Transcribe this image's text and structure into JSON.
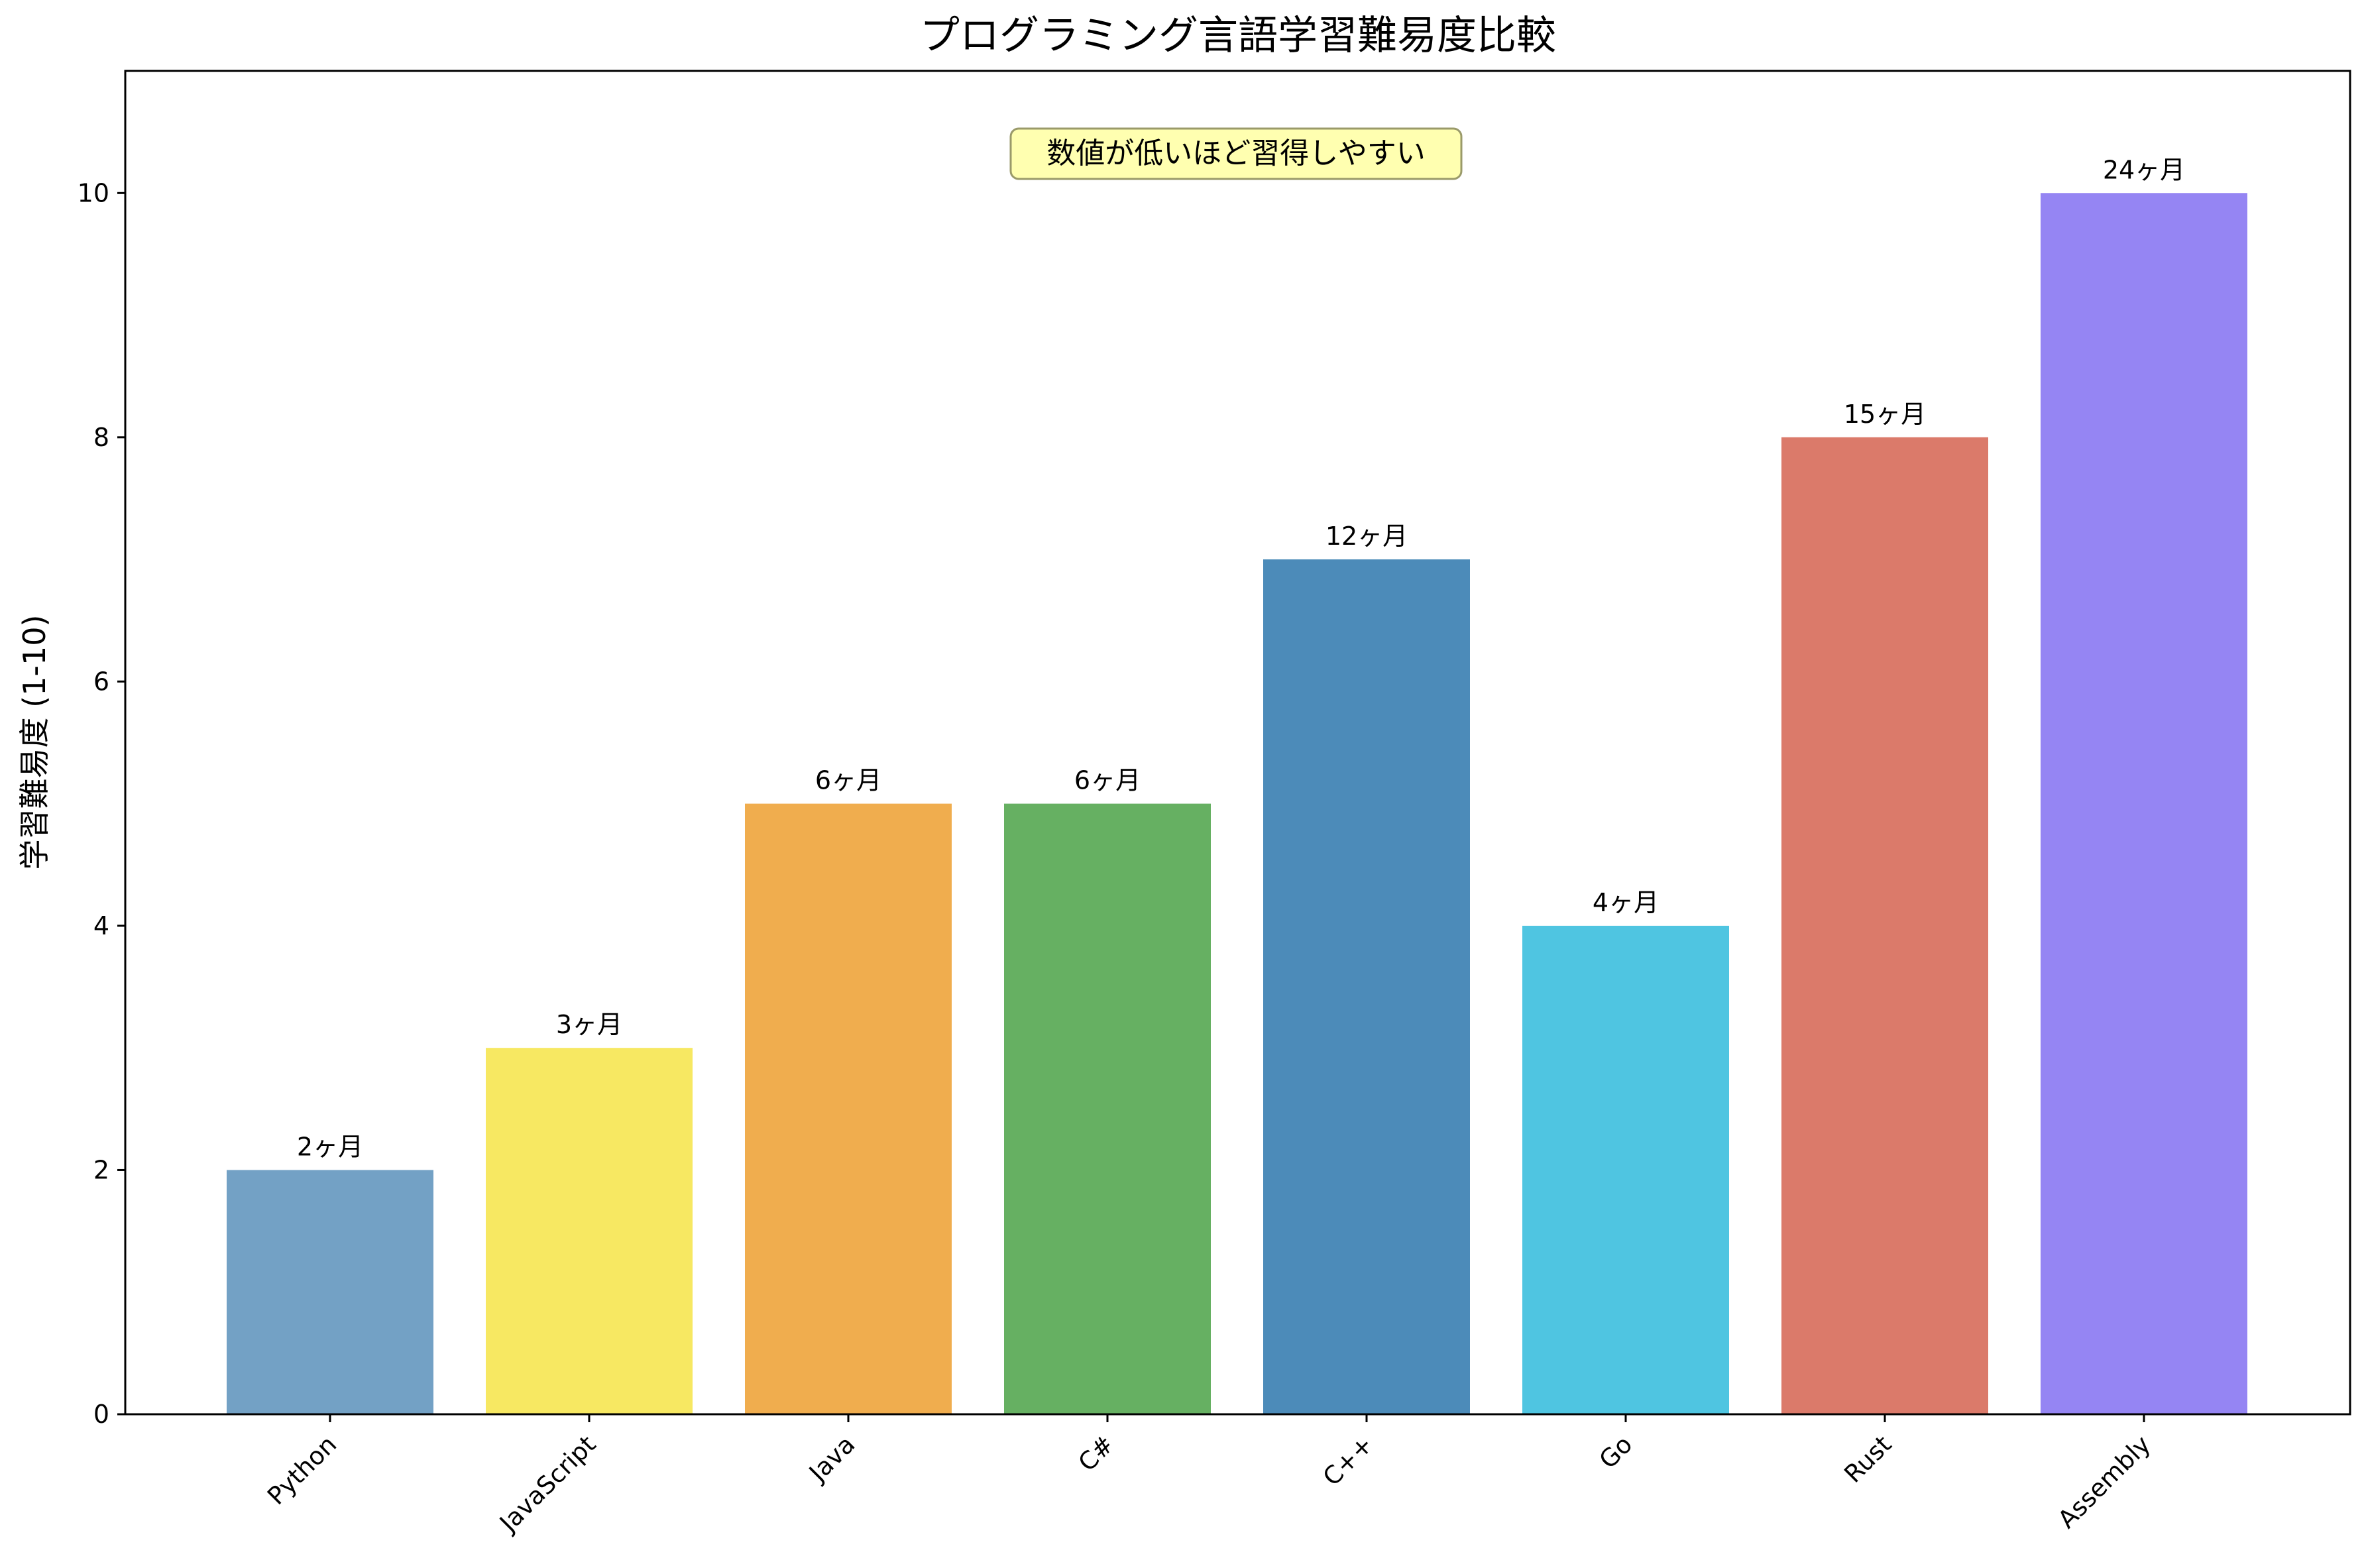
{
  "chart_data": {
    "type": "bar",
    "title": "プログラミング言語学習難易度比較",
    "xlabel": "",
    "ylabel": "学習難易度 (1-10)",
    "categories": [
      "Python",
      "JavaScript",
      "Java",
      "C#",
      "C++",
      "Go",
      "Rust",
      "Assembly"
    ],
    "values": [
      2,
      3,
      5,
      5,
      7,
      4,
      8,
      10
    ],
    "bar_labels": [
      "2ヶ月",
      "3ヶ月",
      "6ヶ月",
      "6ヶ月",
      "12ヶ月",
      "4ヶ月",
      "15ヶ月",
      "24ヶ月"
    ],
    "colors": [
      "#73a1c5",
      "#f7e862",
      "#f0ad4e",
      "#66b062",
      "#4c8bb9",
      "#4fc5e1",
      "#db7a6a",
      "#9585f3"
    ],
    "ylim": [
      0,
      11
    ],
    "yticks": [
      0,
      2,
      4,
      6,
      8,
      10
    ],
    "grid": false,
    "annotation": {
      "text": "数値が低いほど習得しやすい",
      "background_color": "#ffffb0",
      "border_color": "#9a9a6a"
    }
  }
}
